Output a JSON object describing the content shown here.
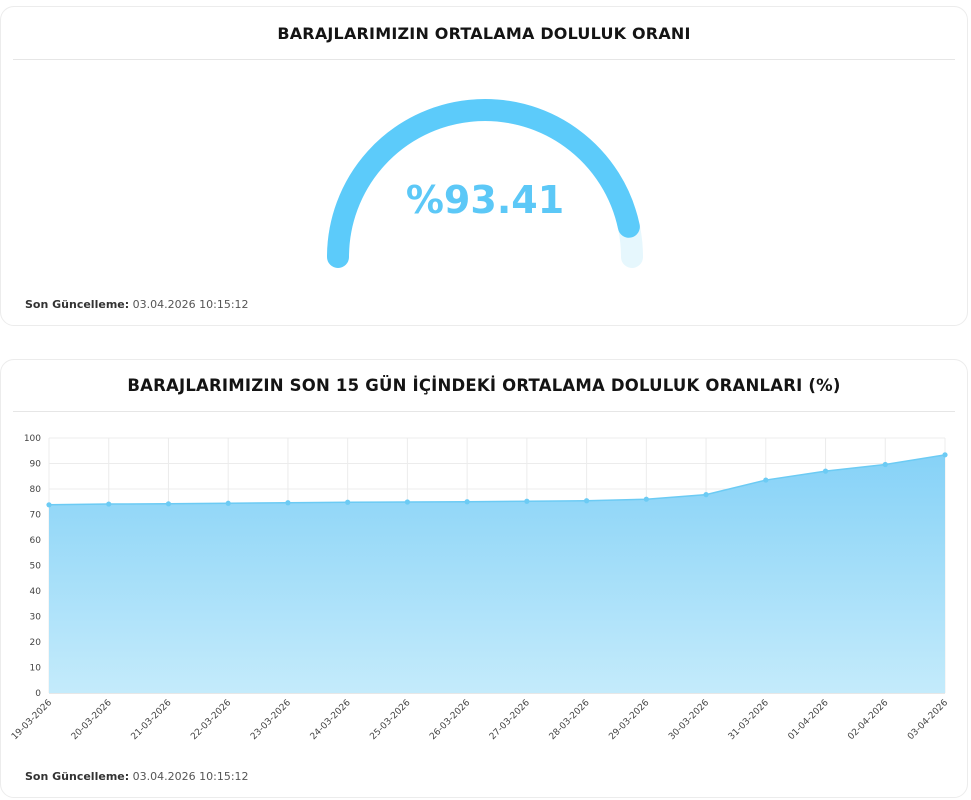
{
  "gauge_card": {
    "title": "BARAJLARIMIZIN ORTALAMA DOLULUK ORANI",
    "value_text": "%93.41",
    "updated_label": "Son Güncelleme:",
    "updated_value": "03.04.2026 10:15:12"
  },
  "trend_card": {
    "title": "BARAJLARIMIZIN SON 15 GÜN İÇİNDEKİ ORTALAMA DOLULUK ORANLARI (%)",
    "updated_label": "Son Güncelleme:",
    "updated_value": "03.04.2026 10:15:12"
  },
  "colors": {
    "accent": "#5ccbfa",
    "gauge_track": "#e6f7fd",
    "area_top": "#86d2f7",
    "area_bottom": "#c4ebfb",
    "line": "#6ccbf4"
  },
  "chart_data": [
    {
      "type": "gauge",
      "value": 93.41,
      "range": [
        0,
        100
      ]
    },
    {
      "type": "area",
      "x": [
        "19-03-2026",
        "20-03-2026",
        "21-03-2026",
        "22-03-2026",
        "23-03-2026",
        "24-03-2026",
        "25-03-2026",
        "26-03-2026",
        "27-03-2026",
        "28-03-2026",
        "29-03-2026",
        "30-03-2026",
        "31-03-2026",
        "01-04-2026",
        "02-04-2026",
        "03-04-2026"
      ],
      "series": [
        {
          "values": [
            73.8,
            74.1,
            74.2,
            74.4,
            74.6,
            74.8,
            74.9,
            75.0,
            75.2,
            75.4,
            76.0,
            77.8,
            83.5,
            87.0,
            89.6,
            93.4
          ]
        }
      ],
      "ylim": [
        0,
        100
      ],
      "yticks": [
        0,
        10,
        20,
        30,
        40,
        50,
        60,
        70,
        80,
        90,
        100
      ],
      "grid": true,
      "legend": "none"
    }
  ]
}
